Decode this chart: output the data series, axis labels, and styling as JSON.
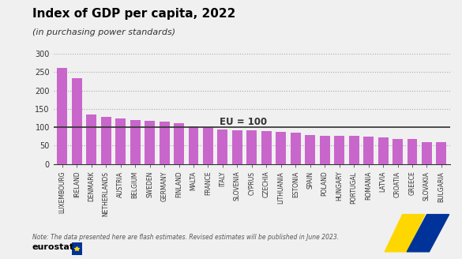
{
  "title": "Index of GDP per capita, 2022",
  "subtitle": "(in purchasing power standards)",
  "note": "Note: The data presented here are flash estimates. Revised estimates will be published in June 2023.",
  "eu_label": "EU = 100",
  "eu_line": 100,
  "ylim": [
    0,
    300
  ],
  "yticks": [
    0,
    50,
    100,
    150,
    200,
    250,
    300
  ],
  "bar_color": "#c966cc",
  "background_color": "#f0f0f0",
  "categories": [
    "LUXEMBOURG",
    "IRELAND",
    "DENMARK",
    "NETHERLANDS",
    "AUSTRIA",
    "BELGIUM",
    "SWEDEN",
    "GERMANY",
    "FINLAND",
    "MALTA",
    "FRANCE",
    "ITALY",
    "SLOVENIA",
    "CYPRUS",
    "CZECHIA",
    "LITHUANIA",
    "ESTONIA",
    "SPAIN",
    "POLAND",
    "HUNGARY",
    "PORTUGAL",
    "ROMANIA",
    "LATVIA",
    "CROATIA",
    "GREECE",
    "SLOVAKIA",
    "BULGARIA"
  ],
  "values": [
    261,
    234,
    135,
    129,
    124,
    120,
    118,
    116,
    110,
    102,
    101,
    93,
    92,
    91,
    90,
    88,
    86,
    79,
    77,
    77,
    77,
    75,
    72,
    68,
    67,
    60,
    59
  ]
}
